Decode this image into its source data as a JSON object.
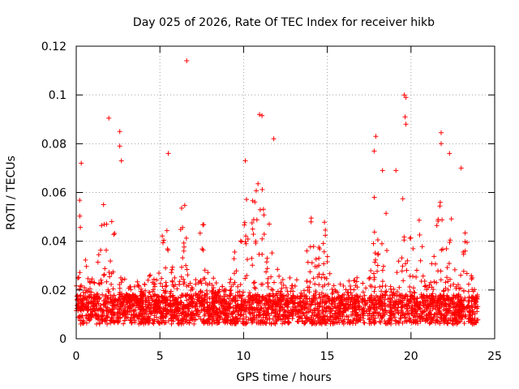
{
  "chart_data": {
    "type": "scatter",
    "title": "Day 025 of 2026, Rate Of TEC Index for receiver hikb",
    "xlabel": "GPS time / hours",
    "ylabel": "ROTI / TECUs",
    "xlim": [
      0,
      25
    ],
    "ylim": [
      0,
      0.12
    ],
    "x_ticks": [
      0,
      5,
      10,
      15,
      20,
      25
    ],
    "x_tick_labels": [
      "0",
      "5",
      "10",
      "15",
      "20",
      "25"
    ],
    "y_ticks": [
      0,
      0.02,
      0.04,
      0.06,
      0.08,
      0.1,
      0.12
    ],
    "y_tick_labels": [
      "0",
      "0.02",
      "0.04",
      "0.06",
      "0.08",
      "0.1",
      "0.12"
    ],
    "grid": true,
    "marker": "+",
    "color": "#ff0000",
    "series": [
      {
        "name": "ROTI",
        "data_description": "dense scatter of ROTI values over 0-24 h; bulk between 0.005 and 0.02 TECU/s",
        "notable_points": [
          {
            "x": 6.6,
            "y": 0.114
          },
          {
            "x": 1.95,
            "y": 0.0905
          },
          {
            "x": 2.6,
            "y": 0.085
          },
          {
            "x": 2.6,
            "y": 0.079
          },
          {
            "x": 2.7,
            "y": 0.073
          },
          {
            "x": 0.3,
            "y": 0.072
          },
          {
            "x": 5.5,
            "y": 0.076
          },
          {
            "x": 10.95,
            "y": 0.092
          },
          {
            "x": 11.1,
            "y": 0.0915
          },
          {
            "x": 11.8,
            "y": 0.082
          },
          {
            "x": 10.1,
            "y": 0.073
          },
          {
            "x": 19.6,
            "y": 0.1
          },
          {
            "x": 19.7,
            "y": 0.099
          },
          {
            "x": 19.65,
            "y": 0.091
          },
          {
            "x": 19.7,
            "y": 0.088
          },
          {
            "x": 17.9,
            "y": 0.083
          },
          {
            "x": 17.8,
            "y": 0.077
          },
          {
            "x": 21.8,
            "y": 0.0845
          },
          {
            "x": 21.8,
            "y": 0.08
          },
          {
            "x": 22.3,
            "y": 0.076
          },
          {
            "x": 19.1,
            "y": 0.069
          },
          {
            "x": 23.0,
            "y": 0.07
          },
          {
            "x": 18.3,
            "y": 0.069
          }
        ]
      }
    ]
  }
}
